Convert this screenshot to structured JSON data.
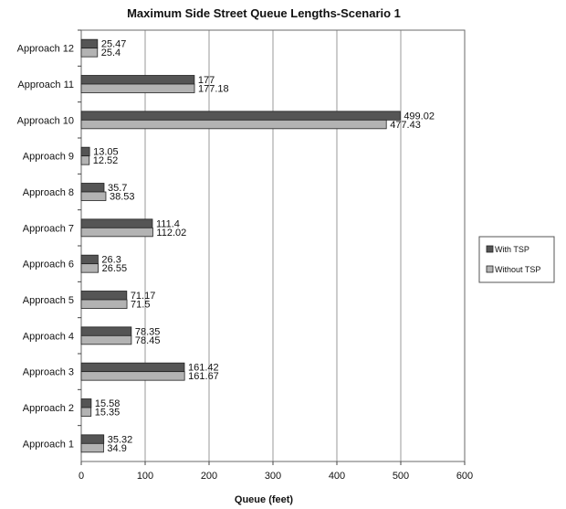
{
  "chart_data": {
    "type": "bar",
    "orientation": "horizontal",
    "title": "Maximum Side Street Queue Lengths-Scenario 1",
    "xlabel": "Queue (feet)",
    "ylabel": "",
    "xlim": [
      0,
      600
    ],
    "xticks": [
      0,
      100,
      200,
      300,
      400,
      500,
      600
    ],
    "grid": true,
    "legend_position": "right",
    "categories": [
      "Approach 1",
      "Approach 2",
      "Approach 3",
      "Approach 4",
      "Approach 5",
      "Approach 6",
      "Approach 7",
      "Approach 8",
      "Approach 9",
      "Approach 10",
      "Approach 11",
      "Approach 12"
    ],
    "series": [
      {
        "name": "With TSP",
        "color": "#555555",
        "values": [
          35.32,
          15.58,
          161.42,
          78.35,
          71.17,
          26.3,
          111.4,
          35.7,
          13.05,
          499.02,
          177,
          25.47
        ],
        "labels": [
          "35.32",
          "15.58",
          "161.42",
          "78.35",
          "71.17",
          "26.3",
          "111.4",
          "35.7",
          "13.05",
          "499.02",
          "177",
          "25.47"
        ]
      },
      {
        "name": "Without TSP",
        "color": "#b3b3b3",
        "values": [
          34.9,
          15.35,
          161.67,
          78.45,
          71.5,
          26.55,
          112.02,
          38.53,
          12.52,
          477.43,
          177.18,
          25.4
        ],
        "labels": [
          "34.9",
          "15.35",
          "161.67",
          "78.45",
          "71.5",
          "26.55",
          "112.02",
          "38.53",
          "12.52",
          "477.43",
          "177.18",
          "25.4"
        ]
      }
    ]
  }
}
